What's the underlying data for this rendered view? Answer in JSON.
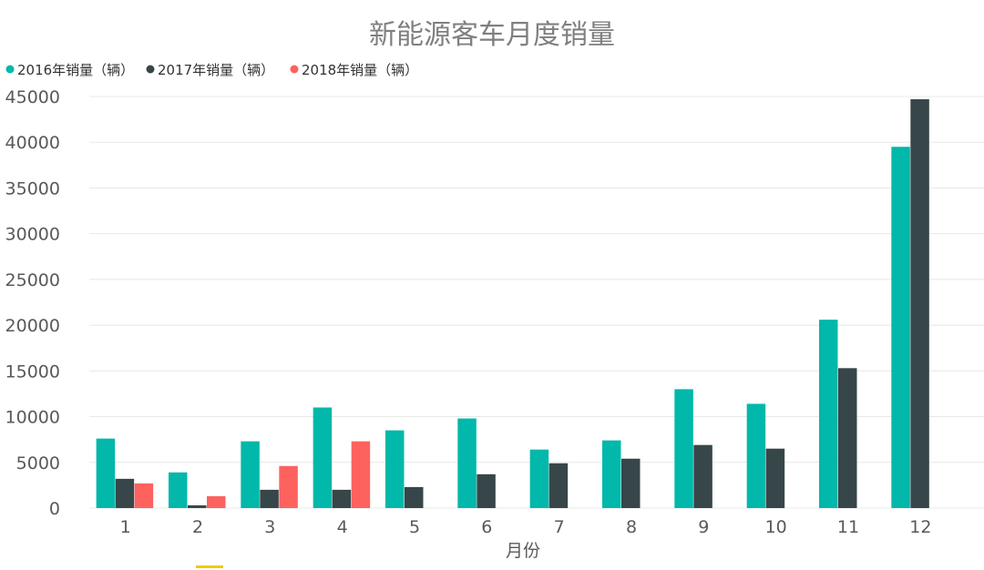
{
  "chart_data": {
    "type": "bar",
    "title": "新能源客车月度销量",
    "xlabel": "月份",
    "ylabel": "",
    "categories": [
      "1",
      "2",
      "3",
      "4",
      "5",
      "6",
      "7",
      "8",
      "9",
      "10",
      "11",
      "12"
    ],
    "series": [
      {
        "name": "2016年销量（辆）",
        "color": "#01b8aa",
        "values": [
          7600,
          3900,
          7300,
          11000,
          8500,
          9800,
          6400,
          7400,
          13000,
          11400,
          20600,
          39500
        ]
      },
      {
        "name": "2017年销量（辆）",
        "color": "#374649",
        "values": [
          3200,
          300,
          2000,
          2000,
          2300,
          3700,
          4900,
          5400,
          6900,
          6500,
          15300,
          44700
        ]
      },
      {
        "name": "2018年销量（辆）",
        "color": "#fd625e",
        "values": [
          2700,
          1300,
          4600,
          7300,
          null,
          null,
          null,
          null,
          null,
          null,
          null,
          null
        ]
      }
    ],
    "ylim": [
      0,
      45000
    ],
    "yticks": [
      "0",
      "5000",
      "10000",
      "15000",
      "20000",
      "25000",
      "30000",
      "35000",
      "40000",
      "45000"
    ],
    "grid": true,
    "legend": "top-left"
  }
}
